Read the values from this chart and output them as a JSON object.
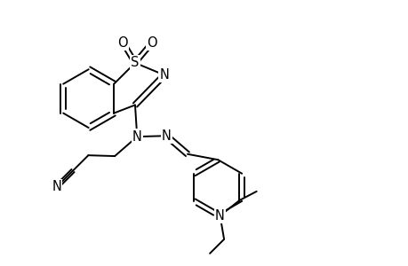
{
  "background_color": "#ffffff",
  "line_color": "#000000",
  "line_width": 1.4,
  "font_size": 10.5,
  "figsize": [
    4.6,
    3.0
  ],
  "dpi": 100,
  "xlim": [
    0,
    10
  ],
  "ylim": [
    0,
    6.5
  ]
}
